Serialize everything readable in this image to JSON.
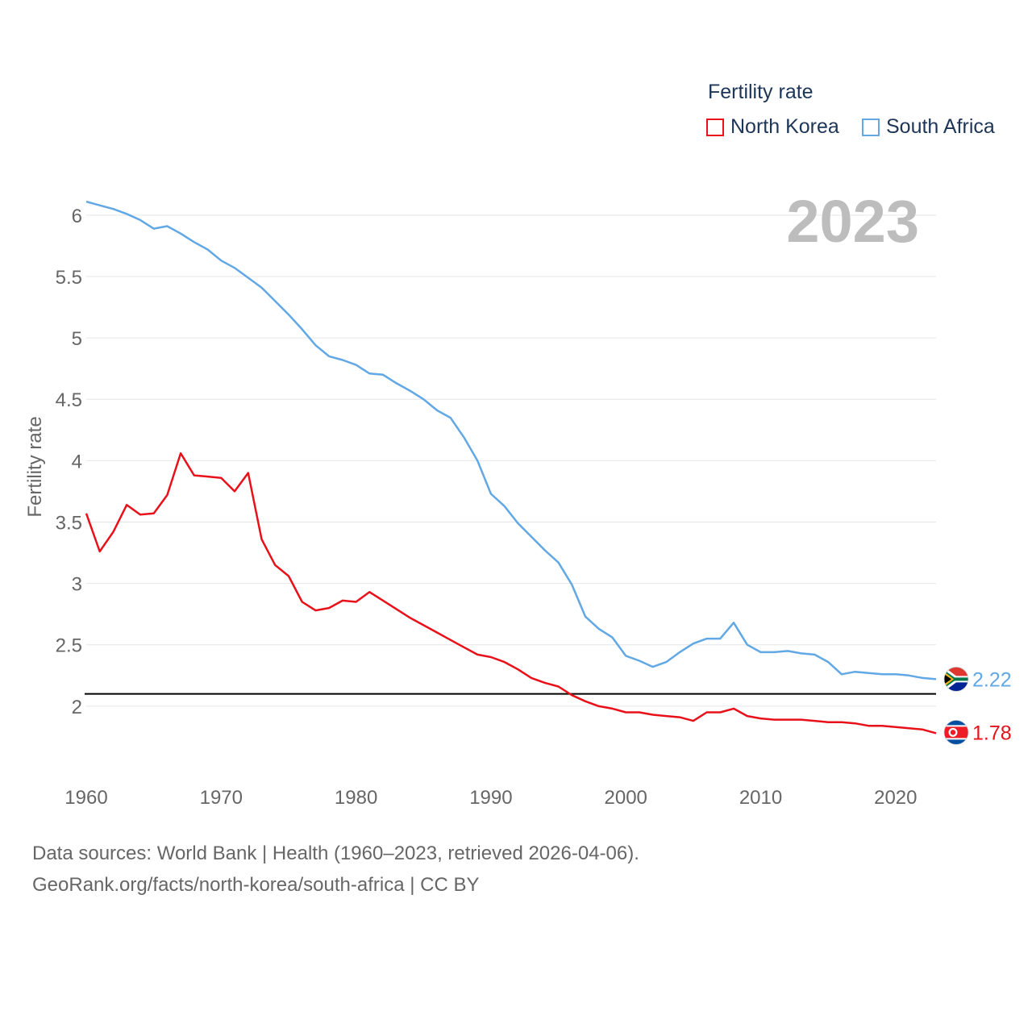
{
  "legend": {
    "title": "Fertility rate",
    "items": [
      {
        "label": "North Korea",
        "color": "#e8111a"
      },
      {
        "label": "South Africa",
        "color": "#62a8e5"
      }
    ]
  },
  "year_badge": "2023",
  "footer": {
    "line1": "Data sources: World Bank | Health (1960–2023, retrieved 2026-04-06).",
    "line2": "GeoRank.org/facts/north-korea/south-africa | CC BY"
  },
  "chart_data": {
    "type": "line",
    "title": "Fertility rate",
    "xlabel": "",
    "ylabel": "Fertility rate",
    "xlim": [
      1960,
      2023
    ],
    "ylim": [
      1.5,
      6.15
    ],
    "x_ticks": [
      1960,
      1970,
      1980,
      1990,
      2000,
      2010,
      2020
    ],
    "y_ticks": [
      2,
      2.5,
      3,
      3.5,
      4,
      4.5,
      5,
      5.5,
      6
    ],
    "reference_line": {
      "y": 2.1,
      "color": "#000000"
    },
    "x": [
      1960,
      1961,
      1962,
      1963,
      1964,
      1965,
      1966,
      1967,
      1968,
      1969,
      1970,
      1971,
      1972,
      1973,
      1974,
      1975,
      1976,
      1977,
      1978,
      1979,
      1980,
      1981,
      1982,
      1983,
      1984,
      1985,
      1986,
      1987,
      1988,
      1989,
      1990,
      1991,
      1992,
      1993,
      1994,
      1995,
      1996,
      1997,
      1998,
      1999,
      2000,
      2001,
      2002,
      2003,
      2004,
      2005,
      2006,
      2007,
      2008,
      2009,
      2010,
      2011,
      2012,
      2013,
      2014,
      2015,
      2016,
      2017,
      2018,
      2019,
      2020,
      2021,
      2022,
      2023
    ],
    "series": [
      {
        "name": "North Korea",
        "color": "#e8111a",
        "end_label": "1.78",
        "values": [
          3.57,
          3.26,
          3.42,
          3.64,
          3.56,
          3.57,
          3.72,
          4.06,
          3.88,
          3.87,
          3.86,
          3.75,
          3.9,
          3.36,
          3.15,
          3.06,
          2.85,
          2.78,
          2.8,
          2.86,
          2.85,
          2.93,
          2.86,
          2.79,
          2.72,
          2.66,
          2.6,
          2.54,
          2.48,
          2.42,
          2.4,
          2.36,
          2.3,
          2.23,
          2.19,
          2.16,
          2.09,
          2.04,
          2.0,
          1.98,
          1.95,
          1.95,
          1.93,
          1.92,
          1.91,
          1.88,
          1.95,
          1.95,
          1.98,
          1.92,
          1.9,
          1.89,
          1.89,
          1.89,
          1.88,
          1.87,
          1.87,
          1.86,
          1.84,
          1.84,
          1.83,
          1.82,
          1.81,
          1.78
        ]
      },
      {
        "name": "South Africa",
        "color": "#62a8e5",
        "end_label": "2.22",
        "values": [
          6.11,
          6.08,
          6.05,
          6.01,
          5.96,
          5.89,
          5.91,
          5.85,
          5.78,
          5.72,
          5.63,
          5.57,
          5.49,
          5.41,
          5.3,
          5.19,
          5.07,
          4.94,
          4.85,
          4.82,
          4.78,
          4.71,
          4.7,
          4.63,
          4.57,
          4.5,
          4.41,
          4.35,
          4.19,
          4.0,
          3.73,
          3.63,
          3.49,
          3.38,
          3.27,
          3.17,
          2.99,
          2.73,
          2.63,
          2.56,
          2.41,
          2.37,
          2.32,
          2.36,
          2.44,
          2.51,
          2.55,
          2.55,
          2.68,
          2.5,
          2.44,
          2.44,
          2.45,
          2.43,
          2.42,
          2.36,
          2.26,
          2.28,
          2.27,
          2.26,
          2.26,
          2.25,
          2.23,
          2.22
        ]
      }
    ]
  }
}
